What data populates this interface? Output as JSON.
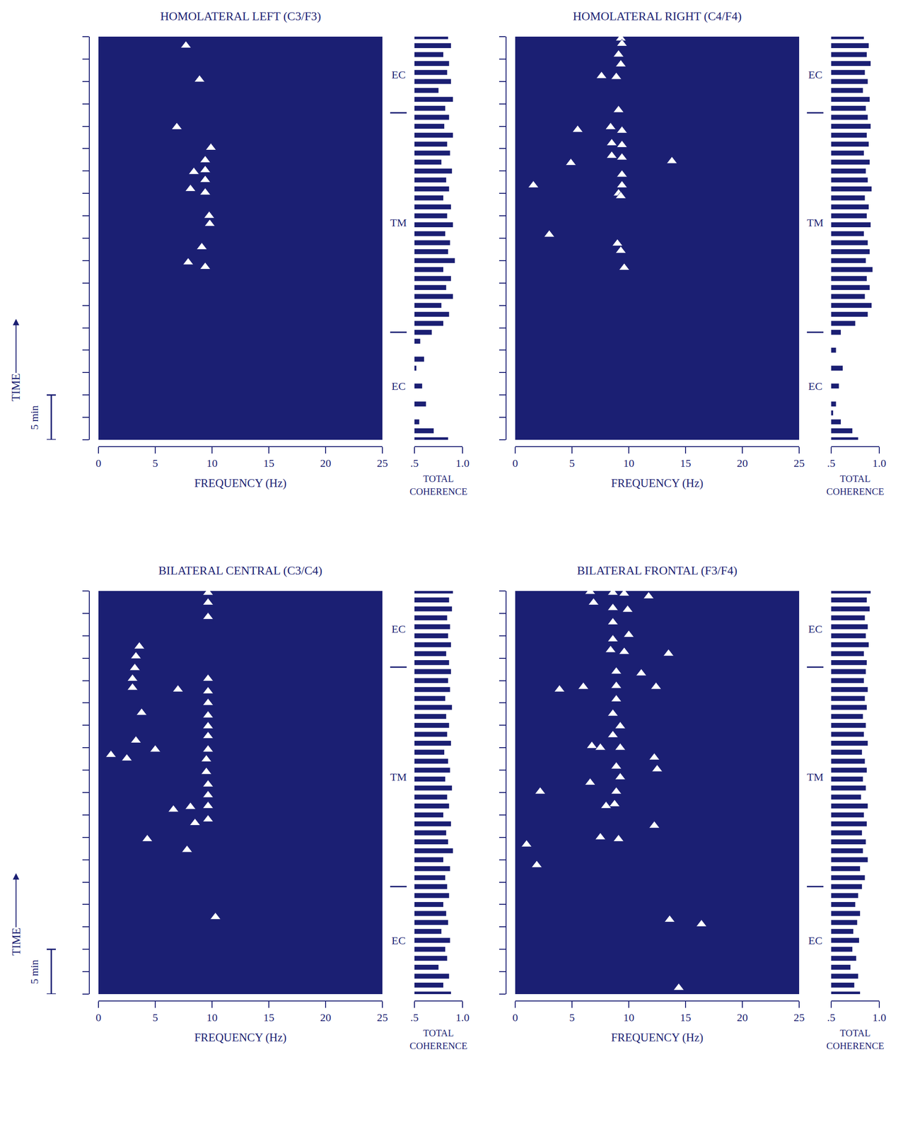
{
  "chart_data": [
    {
      "type": "spectral_array",
      "title": "HOMOLATERAL LEFT (C3/F3)",
      "xlabel": "FREQUENCY (Hz)",
      "ylabel": "TIME",
      "xlim": [
        0,
        25
      ],
      "xticks": [
        0,
        5,
        10,
        15,
        20,
        25
      ],
      "ylim": [
        0,
        45
      ],
      "yticks": [
        0,
        2.5,
        5,
        7.5,
        10,
        12.5,
        15,
        17.5,
        20,
        22.5,
        25,
        27.5,
        30,
        32.5,
        35,
        37.5,
        40,
        42.5,
        45
      ],
      "tick_labels": "x",
      "color": "#1b1f73",
      "marker": "triangle-up",
      "scale_bar": {
        "label": "5 min",
        "value": 5
      },
      "epochs": [
        {
          "label": "EC",
          "start": 0,
          "end": 12
        },
        {
          "label": "TM",
          "start": 12,
          "end": 36.5
        },
        {
          "label": "EC",
          "start": 36.5,
          "end": 45
        }
      ],
      "peaks": {
        "x": [
          7.7,
          8.9,
          6.9,
          9.9,
          9.4,
          8.4,
          9.4,
          8.1,
          9.4,
          9.4,
          9.75,
          9.8,
          9.1,
          7.9,
          9.4
        ],
        "y": [
          44.0,
          40.2,
          34.9,
          32.6,
          31.2,
          29.9,
          30.1,
          28.0,
          29.0,
          27.6,
          25.0,
          24.1,
          21.5,
          19.8,
          19.3
        ]
      },
      "coherence": {
        "type": "bar",
        "orientation": "horizontal",
        "xlabel": "TOTAL COHERENCE",
        "xlim": [
          0.5,
          1
        ],
        "xticks": [
          {
            "value": 0.5,
            "label": ".5"
          },
          {
            "value": 1,
            "label": "1.0"
          }
        ],
        "color": "#1b1f73",
        "y": [
          0,
          1,
          2,
          3,
          4,
          5,
          6,
          7,
          8,
          9,
          10,
          11,
          12,
          13,
          14,
          15,
          16,
          17,
          18,
          19,
          20,
          21,
          22,
          23,
          24,
          25,
          26,
          27,
          28,
          29,
          30,
          31,
          32,
          33,
          34,
          35,
          36,
          37,
          38,
          39,
          40,
          41,
          42,
          43,
          44,
          45
        ],
        "values": [
          0.85,
          0.7,
          0.55,
          0.45,
          0.62,
          0.48,
          0.58,
          0.45,
          0.52,
          0.6,
          0.47,
          0.56,
          0.68,
          0.8,
          0.86,
          0.78,
          0.9,
          0.83,
          0.88,
          0.8,
          0.92,
          0.85,
          0.87,
          0.82,
          0.9,
          0.84,
          0.88,
          0.8,
          0.86,
          0.83,
          0.89,
          0.78,
          0.87,
          0.84,
          0.9,
          0.81,
          0.86,
          0.82,
          0.9,
          0.75,
          0.88,
          0.84,
          0.86,
          0.8,
          0.88,
          0.85
        ]
      }
    },
    {
      "type": "spectral_array",
      "title": "HOMOLATERAL RIGHT (C4/F4)",
      "xlabel": "FREQUENCY (Hz)",
      "xlim": [
        0,
        25
      ],
      "xticks": [
        0,
        5,
        10,
        15,
        20,
        25
      ],
      "ylim": [
        0,
        45
      ],
      "yticks": [
        0,
        2.5,
        5,
        7.5,
        10,
        12.5,
        15,
        17.5,
        20,
        22.5,
        25,
        27.5,
        30,
        32.5,
        35,
        37.5,
        40,
        42.5,
        45
      ],
      "tick_labels": "x",
      "color": "#1b1f73",
      "marker": "triangle-up",
      "epochs": [
        {
          "label": "EC",
          "start": 0,
          "end": 12
        },
        {
          "label": "TM",
          "start": 12,
          "end": 36.5
        },
        {
          "label": "EC",
          "start": 36.5,
          "end": 45
        }
      ],
      "peaks": {
        "x": [
          9.3,
          9.4,
          9.1,
          9.3,
          7.6,
          8.9,
          9.1,
          5.5,
          8.4,
          9.4,
          8.5,
          9.4,
          8.5,
          9.4,
          13.8,
          4.9,
          9.4,
          9.4,
          1.6,
          9.1,
          9.3,
          3.0,
          9.0,
          9.3,
          9.6
        ],
        "y": [
          44.8,
          44.2,
          43.0,
          41.9,
          40.6,
          40.5,
          36.8,
          34.6,
          34.9,
          34.5,
          33.1,
          32.9,
          31.7,
          31.5,
          31.1,
          30.9,
          29.6,
          28.4,
          28.4,
          27.5,
          27.2,
          22.9,
          21.9,
          21.1,
          19.2
        ]
      },
      "coherence": {
        "type": "bar",
        "orientation": "horizontal",
        "xlabel": "TOTAL COHERENCE",
        "xlim": [
          0.5,
          1
        ],
        "xticks": [
          {
            "value": 0.5,
            "label": ".5"
          },
          {
            "value": 1,
            "label": "1.0"
          }
        ],
        "color": "#1b1f73",
        "y": [
          0,
          1,
          2,
          3,
          4,
          5,
          6,
          7,
          8,
          9,
          10,
          11,
          12,
          13,
          14,
          15,
          16,
          17,
          18,
          19,
          20,
          21,
          22,
          23,
          24,
          25,
          26,
          27,
          28,
          29,
          30,
          31,
          32,
          33,
          34,
          35,
          36,
          37,
          38,
          39,
          40,
          41,
          42,
          43,
          44,
          45
        ],
        "values": [
          0.78,
          0.72,
          0.6,
          0.52,
          0.55,
          0.48,
          0.58,
          0.5,
          0.62,
          0.45,
          0.55,
          0.5,
          0.6,
          0.75,
          0.88,
          0.92,
          0.85,
          0.9,
          0.87,
          0.93,
          0.86,
          0.9,
          0.88,
          0.84,
          0.91,
          0.87,
          0.89,
          0.85,
          0.92,
          0.88,
          0.86,
          0.9,
          0.84,
          0.89,
          0.87,
          0.91,
          0.88,
          0.86,
          0.9,
          0.83,
          0.88,
          0.85,
          0.91,
          0.87,
          0.89,
          0.84
        ]
      }
    },
    {
      "type": "spectral_array",
      "title": "BILATERAL CENTRAL (C3/C4)",
      "xlabel": "FREQUENCY (Hz)",
      "ylabel": "TIME",
      "xlim": [
        0,
        25
      ],
      "xticks": [
        0,
        5,
        10,
        15,
        20,
        25
      ],
      "ylim": [
        0,
        45
      ],
      "yticks": [
        0,
        2.5,
        5,
        7.5,
        10,
        12.5,
        15,
        17.5,
        20,
        22.5,
        25,
        27.5,
        30,
        32.5,
        35,
        37.5,
        40,
        42.5,
        45
      ],
      "tick_labels": "x",
      "color": "#1b1f73",
      "marker": "triangle-up",
      "scale_bar": {
        "label": "5 min",
        "value": 5
      },
      "epochs": [
        {
          "label": "EC",
          "start": 0,
          "end": 12
        },
        {
          "label": "TM",
          "start": 12,
          "end": 36.5
        },
        {
          "label": "EC",
          "start": 36.5,
          "end": 45
        }
      ],
      "peaks": {
        "x": [
          9.65,
          9.65,
          9.65,
          3.6,
          3.3,
          3.2,
          3.0,
          3.0,
          9.65,
          7.0,
          9.65,
          9.65,
          3.8,
          9.65,
          9.65,
          9.65,
          3.3,
          5.0,
          1.1,
          2.5,
          9.65,
          9.5,
          9.5,
          9.65,
          9.65,
          6.6,
          8.1,
          9.65,
          9.65,
          8.5,
          4.3,
          7.8,
          10.3
        ],
        "y": [
          44.8,
          43.7,
          42.1,
          38.8,
          37.7,
          36.4,
          35.2,
          34.2,
          35.2,
          34.0,
          33.8,
          32.5,
          31.4,
          31.1,
          29.9,
          28.8,
          28.3,
          27.3,
          26.7,
          26.3,
          27.3,
          26.2,
          24.8,
          23.4,
          22.2,
          20.6,
          20.9,
          21.0,
          19.5,
          19.1,
          17.3,
          16.1,
          8.6
        ]
      },
      "coherence": {
        "type": "bar",
        "orientation": "horizontal",
        "xlabel": "TOTAL COHERENCE",
        "xlim": [
          0.5,
          1
        ],
        "xticks": [
          {
            "value": 0.5,
            "label": ".5"
          },
          {
            "value": 1,
            "label": "1.0"
          }
        ],
        "color": "#1b1f73",
        "y": [
          0,
          1,
          2,
          3,
          4,
          5,
          6,
          7,
          8,
          9,
          10,
          11,
          12,
          13,
          14,
          15,
          16,
          17,
          18,
          19,
          20,
          21,
          22,
          23,
          24,
          25,
          26,
          27,
          28,
          29,
          30,
          31,
          32,
          33,
          34,
          35,
          36,
          37,
          38,
          39,
          40,
          41,
          42,
          43,
          44,
          45
        ],
        "values": [
          0.88,
          0.8,
          0.86,
          0.75,
          0.84,
          0.82,
          0.87,
          0.78,
          0.85,
          0.83,
          0.8,
          0.86,
          0.84,
          0.82,
          0.87,
          0.8,
          0.9,
          0.85,
          0.83,
          0.88,
          0.8,
          0.86,
          0.84,
          0.89,
          0.82,
          0.87,
          0.85,
          0.81,
          0.88,
          0.84,
          0.86,
          0.83,
          0.89,
          0.82,
          0.87,
          0.85,
          0.88,
          0.86,
          0.83,
          0.88,
          0.85,
          0.87,
          0.84,
          0.89,
          0.86,
          0.9
        ]
      }
    },
    {
      "type": "spectral_array",
      "title": "BILATERAL FRONTAL (F3/F4)",
      "xlabel": "FREQUENCY (Hz)",
      "xlim": [
        0,
        25
      ],
      "xticks": [
        0,
        5,
        10,
        15,
        20,
        25
      ],
      "ylim": [
        0,
        45
      ],
      "yticks": [
        0,
        2.5,
        5,
        7.5,
        10,
        12.5,
        15,
        17.5,
        20,
        22.5,
        25,
        27.5,
        30,
        32.5,
        35,
        37.5,
        40,
        42.5,
        45
      ],
      "tick_labels": "x",
      "color": "#1b1f73",
      "marker": "triangle-up",
      "epochs": [
        {
          "label": "EC",
          "start": 0,
          "end": 12
        },
        {
          "label": "TM",
          "start": 12,
          "end": 36.5
        },
        {
          "label": "EC",
          "start": 36.5,
          "end": 45
        }
      ],
      "peaks": {
        "x": [
          6.6,
          8.6,
          9.6,
          11.75,
          6.9,
          8.6,
          9.9,
          8.6,
          10.0,
          8.6,
          8.4,
          9.6,
          13.5,
          11.1,
          8.9,
          3.9,
          6.0,
          12.4,
          8.9,
          8.9,
          8.6,
          9.25,
          8.6,
          6.75,
          7.5,
          9.25,
          12.25,
          12.5,
          8.9,
          9.25,
          6.6,
          2.2,
          8.9,
          8.75,
          8.0,
          12.25,
          7.5,
          9.1,
          1.0,
          1.9,
          13.6,
          16.4,
          14.4
        ],
        "y": [
          44.9,
          44.8,
          44.7,
          44.4,
          43.7,
          43.1,
          42.9,
          41.5,
          40.1,
          39.6,
          38.4,
          38.2,
          38.0,
          35.8,
          36.0,
          34.0,
          34.3,
          34.3,
          34.4,
          32.9,
          31.3,
          29.9,
          28.9,
          27.7,
          27.5,
          27.5,
          26.4,
          25.1,
          25.4,
          24.2,
          23.6,
          22.6,
          22.6,
          21.2,
          21.0,
          18.8,
          17.5,
          17.3,
          16.7,
          14.4,
          8.3,
          7.8,
          0.7
        ]
      },
      "coherence": {
        "type": "bar",
        "orientation": "horizontal",
        "xlabel": "TOTAL COHERENCE",
        "xlim": [
          0.5,
          1
        ],
        "xticks": [
          {
            "value": 0.5,
            "label": ".5"
          },
          {
            "value": 1,
            "label": "1.0"
          }
        ],
        "color": "#1b1f73",
        "y": [
          0,
          1,
          2,
          3,
          4,
          5,
          6,
          7,
          8,
          9,
          10,
          11,
          12,
          13,
          14,
          15,
          16,
          17,
          18,
          19,
          20,
          21,
          22,
          23,
          24,
          25,
          26,
          27,
          28,
          29,
          30,
          31,
          32,
          33,
          34,
          35,
          36,
          37,
          38,
          39,
          40,
          41,
          42,
          43,
          44,
          45
        ],
        "values": [
          0.8,
          0.74,
          0.78,
          0.7,
          0.76,
          0.72,
          0.79,
          0.73,
          0.77,
          0.8,
          0.75,
          0.78,
          0.82,
          0.85,
          0.8,
          0.88,
          0.83,
          0.86,
          0.82,
          0.87,
          0.84,
          0.88,
          0.81,
          0.86,
          0.83,
          0.87,
          0.85,
          0.82,
          0.88,
          0.84,
          0.86,
          0.83,
          0.87,
          0.85,
          0.88,
          0.84,
          0.86,
          0.87,
          0.84,
          0.89,
          0.86,
          0.88,
          0.85,
          0.9,
          0.87,
          0.91
        ]
      }
    }
  ]
}
